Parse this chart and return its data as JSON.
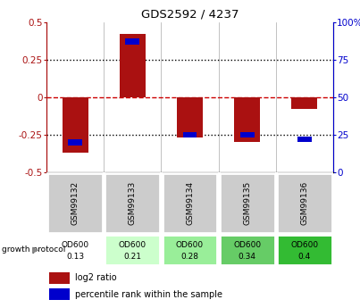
{
  "title": "GDS2592 / 4237",
  "samples": [
    "GSM99132",
    "GSM99133",
    "GSM99134",
    "GSM99135",
    "GSM99136"
  ],
  "log2_ratios": [
    -0.37,
    0.42,
    -0.27,
    -0.3,
    -0.08
  ],
  "percentile_ranks": [
    20,
    87,
    25,
    25,
    22
  ],
  "bar_color": "#aa1111",
  "blue_color": "#0000cc",
  "ylim_left": [
    -0.5,
    0.5
  ],
  "ylim_right": [
    0,
    100
  ],
  "yticks_left": [
    -0.5,
    -0.25,
    0,
    0.25,
    0.5
  ],
  "yticks_right": [
    0,
    25,
    50,
    75,
    100
  ],
  "hline_color": "#cc0000",
  "growth_labels_line1": [
    "OD600",
    "OD600",
    "OD600",
    "OD600",
    "OD600"
  ],
  "growth_labels_line2": [
    "0.13",
    "0.21",
    "0.28",
    "0.34",
    "0.4"
  ],
  "growth_colors": [
    "#ffffff",
    "#ccffcc",
    "#99ee99",
    "#66cc66",
    "#33bb33"
  ],
  "bar_width": 0.45,
  "legend_red_label": "log2 ratio",
  "legend_blue_label": "percentile rank within the sample",
  "fig_width": 4.03,
  "fig_height": 3.45,
  "dpi": 100
}
